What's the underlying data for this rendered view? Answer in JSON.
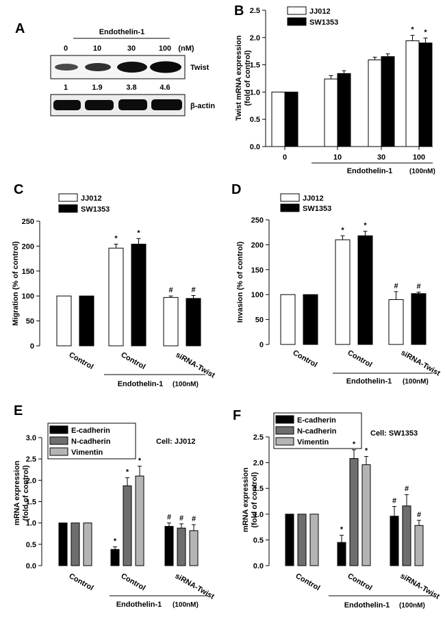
{
  "panel_letters": {
    "a": "A",
    "b": "B",
    "c": "C",
    "d": "D",
    "e": "E",
    "f": "F"
  },
  "colors": {
    "black": "#000000",
    "white": "#ffffff",
    "darkgray": "#6e6e6e",
    "lightgray": "#b4b4b4"
  },
  "blot": {
    "treatment": "Endothelin-1",
    "doses": [
      "0",
      "10",
      "30",
      "100"
    ],
    "unit": "(nM)",
    "bands": [
      "Twist",
      "β-actin"
    ],
    "quant": [
      "1",
      "1.9",
      "3.8",
      "4.6"
    ]
  },
  "chart_data": [
    {
      "id": "B",
      "type": "bar",
      "ylabel": "Twist mRNA expression (fold of control)",
      "ylabel_lines": [
        "Twist mRNA expression",
        "(fold of control)"
      ],
      "ylim": [
        0,
        2.5
      ],
      "yticks": [
        "0.0",
        "0.5",
        "1.0",
        "1.5",
        "2.0",
        "2.5"
      ],
      "categories": [
        "0",
        "10",
        "30",
        "100"
      ],
      "series": [
        {
          "name": "JJ012",
          "values": [
            1.0,
            1.24,
            1.59,
            1.94
          ],
          "errors": [
            0,
            0.06,
            0.05,
            0.1
          ]
        },
        {
          "name": "SW1353",
          "values": [
            1.0,
            1.34,
            1.65,
            1.9
          ],
          "errors": [
            0,
            0.05,
            0.05,
            0.09
          ]
        }
      ],
      "marks": [
        [
          "",
          "",
          "",
          "*"
        ],
        [
          "",
          "",
          "",
          "*"
        ]
      ],
      "treatment_label": "Endothelin-1",
      "treatment_unit": "(100nM)"
    },
    {
      "id": "C",
      "type": "bar",
      "ylabel": "Migration (% of control)",
      "ylim": [
        0,
        250
      ],
      "yticks": [
        "0",
        "50",
        "100",
        "150",
        "200",
        "250"
      ],
      "categories": [
        "Control",
        "Control",
        "siRNA-Twist"
      ],
      "series": [
        {
          "name": "JJ012",
          "values": [
            100,
            196,
            97
          ],
          "errors": [
            0,
            8,
            3
          ]
        },
        {
          "name": "SW1353",
          "values": [
            100,
            204,
            95
          ],
          "errors": [
            0,
            11,
            6
          ]
        }
      ],
      "marks": [
        [
          "",
          "*",
          "#"
        ],
        [
          "",
          "*",
          "#"
        ]
      ],
      "treatment_label": "Endothelin-1",
      "treatment_unit": "(100nM)"
    },
    {
      "id": "D",
      "type": "bar",
      "ylabel": "Invasion (% of control)",
      "ylim": [
        0,
        250
      ],
      "yticks": [
        "0",
        "50",
        "100",
        "150",
        "200",
        "250"
      ],
      "categories": [
        "Control",
        "Control",
        "siRNA-Twist"
      ],
      "series": [
        {
          "name": "JJ012",
          "values": [
            100,
            210,
            90
          ],
          "errors": [
            0,
            8,
            16
          ]
        },
        {
          "name": "SW1353",
          "values": [
            100,
            218,
            102
          ],
          "errors": [
            0,
            9,
            3
          ]
        }
      ],
      "marks": [
        [
          "",
          "*",
          "#"
        ],
        [
          "",
          "*",
          "#"
        ]
      ],
      "treatment_label": "Endothelin-1",
      "treatment_unit": "(100nM)"
    },
    {
      "id": "E",
      "type": "bar",
      "ylabel": "mRNA expression (fold of control)",
      "ylabel_lines": [
        "mRNA expression",
        "(fold of control)"
      ],
      "ylim": [
        0,
        3.0
      ],
      "yticks": [
        "0.0",
        "0.5",
        "1.0",
        "1.5",
        "2.0",
        "2.5",
        "3.0"
      ],
      "categories": [
        "Control",
        "Control",
        "siRNA-Twist"
      ],
      "annotation": "Cell: JJ012",
      "series": [
        {
          "name": "E-cadherin",
          "values": [
            1.0,
            0.38,
            0.92
          ],
          "errors": [
            0,
            0.06,
            0.08
          ]
        },
        {
          "name": "N-cadherin",
          "values": [
            1.0,
            1.87,
            0.88
          ],
          "errors": [
            0,
            0.19,
            0.1
          ]
        },
        {
          "name": "Vimentin",
          "values": [
            1.0,
            2.1,
            0.82
          ],
          "errors": [
            0,
            0.23,
            0.14
          ]
        }
      ],
      "marks": [
        [
          "",
          "*",
          "#"
        ],
        [
          "",
          "*",
          "#"
        ],
        [
          "",
          "*",
          "#"
        ]
      ],
      "treatment_label": "Endothelin-1",
      "treatment_unit": "(100nM)"
    },
    {
      "id": "F",
      "type": "bar",
      "ylabel": "mRNA expression (fold of control)",
      "ylabel_lines": [
        "mRNA expression",
        "(fold of control)"
      ],
      "ylim": [
        0,
        2.5
      ],
      "yticks": [
        "0.0",
        "0.5",
        "1.0",
        "1.5",
        "2.0",
        "2.5"
      ],
      "categories": [
        "Control",
        "Control",
        "siRNA-Twist"
      ],
      "annotation": "Cell: SW1353",
      "series": [
        {
          "name": "E-cadherin",
          "values": [
            1.0,
            0.45,
            0.96
          ],
          "errors": [
            0,
            0.14,
            0.19
          ]
        },
        {
          "name": "N-cadherin",
          "values": [
            1.0,
            2.08,
            1.16
          ],
          "errors": [
            0,
            0.17,
            0.22
          ]
        },
        {
          "name": "Vimentin",
          "values": [
            1.0,
            1.96,
            0.78
          ],
          "errors": [
            0,
            0.16,
            0.1
          ]
        }
      ],
      "marks": [
        [
          "",
          "*",
          "#"
        ],
        [
          "",
          "*",
          "#"
        ],
        [
          "",
          "*",
          "#"
        ]
      ],
      "treatment_label": "Endothelin-1",
      "treatment_unit": "(100nM)"
    }
  ]
}
